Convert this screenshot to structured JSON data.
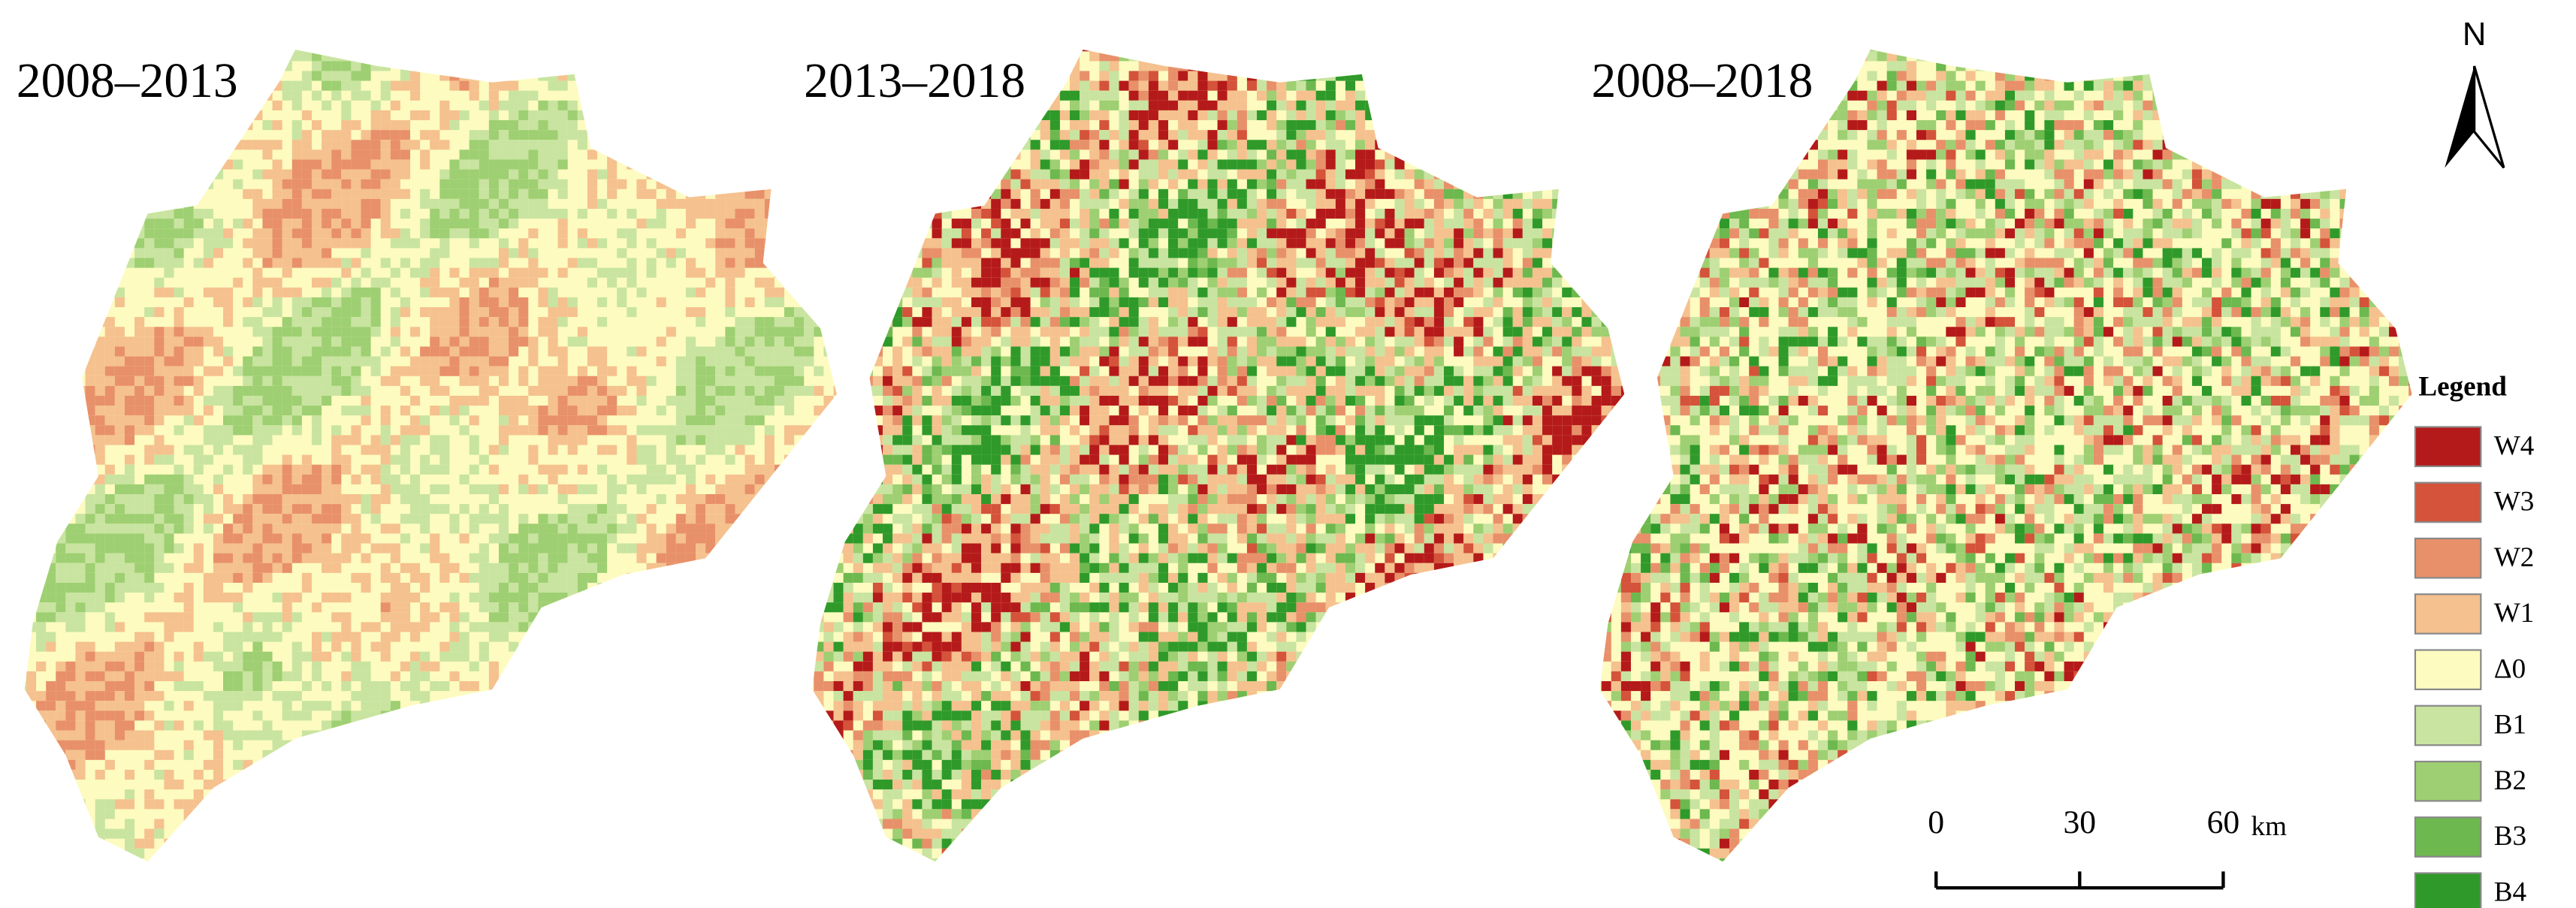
{
  "panels": [
    {
      "title": "2008–2013"
    },
    {
      "title": "2013–2018"
    },
    {
      "title": "2008–2018"
    }
  ],
  "north_arrow": "N",
  "legend": {
    "title": "Legend",
    "items": [
      {
        "label": "W4",
        "color": "#b51a1a"
      },
      {
        "label": "W3",
        "color": "#d4533a"
      },
      {
        "label": "W2",
        "color": "#e8906a"
      },
      {
        "label": "W1",
        "color": "#f5c18e"
      },
      {
        "label": "Δ0",
        "color": "#fdfbc0"
      },
      {
        "label": "B1",
        "color": "#c8e4a0"
      },
      {
        "label": "B2",
        "color": "#9ecf72"
      },
      {
        "label": "B3",
        "color": "#6db84f"
      },
      {
        "label": "B4",
        "color": "#2f9a2a"
      }
    ]
  },
  "scale_bar": {
    "ticks": [
      0,
      30,
      60
    ],
    "unit": "km"
  }
}
